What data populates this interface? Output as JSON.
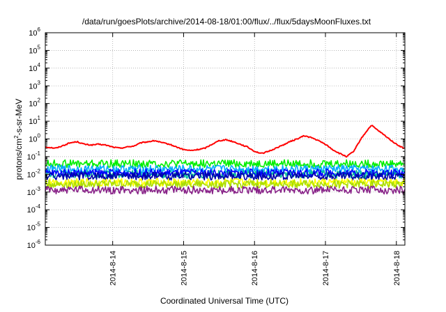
{
  "chart_data": {
    "type": "line",
    "title": "/data/run/goesPlots/archive/2014-08-18/01:00/flux/../flux/5daysMoonFluxes.txt",
    "xlabel": "Coordinated Universal Time (UTC)",
    "ylabel": "protons/cm²-s-sr-MeV",
    "ylabel_parts": {
      "pre": "protons/cm",
      "sup": "2",
      "post": "-s-sr-MeV"
    },
    "y_scale": "log",
    "ylim": [
      1e-06,
      1000000.0
    ],
    "y_ticks": [
      {
        "base": "10",
        "exp": "-6"
      },
      {
        "base": "10",
        "exp": "-5"
      },
      {
        "base": "10",
        "exp": "-4"
      },
      {
        "base": "10",
        "exp": "-3"
      },
      {
        "base": "10",
        "exp": "-2"
      },
      {
        "base": "10",
        "exp": "-1"
      },
      {
        "base": "10",
        "exp": "0"
      },
      {
        "base": "10",
        "exp": "1"
      },
      {
        "base": "10",
        "exp": "2"
      },
      {
        "base": "10",
        "exp": "3"
      },
      {
        "base": "10",
        "exp": "4"
      },
      {
        "base": "10",
        "exp": "5"
      },
      {
        "base": "10",
        "exp": "6"
      }
    ],
    "x_ticks": [
      "2014-8-14",
      "2014-8-15",
      "2014-8-16",
      "2014-8-17",
      "2014-8-18"
    ],
    "xlim_days": [
      13.05,
      18.12
    ],
    "grid": true,
    "legend": "none",
    "series": [
      {
        "color": "#ff0000",
        "x_days": [
          13.05,
          13.2,
          13.4,
          13.5,
          13.6,
          13.7,
          13.8,
          13.9,
          14.0,
          14.1,
          14.2,
          14.3,
          14.4,
          14.5,
          14.6,
          14.7,
          14.8,
          14.9,
          15.0,
          15.1,
          15.2,
          15.3,
          15.4,
          15.5,
          15.6,
          15.7,
          15.8,
          15.9,
          16.0,
          16.1,
          16.2,
          16.3,
          16.4,
          16.5,
          16.6,
          16.7,
          16.8,
          16.9,
          17.0,
          17.1,
          17.2,
          17.3,
          17.4,
          17.5,
          17.6,
          17.65,
          17.7,
          17.8,
          17.9,
          18.0,
          18.1
        ],
        "values": [
          0.35,
          0.3,
          0.6,
          0.7,
          0.5,
          0.45,
          0.5,
          0.45,
          0.35,
          0.3,
          0.35,
          0.4,
          0.6,
          0.7,
          0.8,
          0.6,
          0.5,
          0.35,
          0.25,
          0.22,
          0.25,
          0.3,
          0.5,
          0.8,
          0.9,
          0.7,
          0.5,
          0.35,
          0.2,
          0.15,
          0.2,
          0.3,
          0.45,
          0.7,
          1.0,
          1.5,
          1.2,
          0.8,
          0.5,
          0.25,
          0.15,
          0.1,
          0.2,
          1.0,
          3.5,
          6.0,
          4.0,
          2.0,
          1.0,
          0.5,
          0.3
        ]
      },
      {
        "color": "#00ee00",
        "x_days": [
          13.05,
          18.12
        ],
        "values": [
          0.04,
          0.04
        ]
      },
      {
        "color": "#00aaff",
        "x_days": [
          13.05,
          18.12
        ],
        "values": [
          0.02,
          0.02
        ]
      },
      {
        "color": "#00bb99",
        "x_days": [
          13.05,
          18.12
        ],
        "values": [
          0.01,
          0.01
        ]
      },
      {
        "color": "#0000ff",
        "x_days": [
          13.05,
          18.12
        ],
        "values": [
          0.012,
          0.012
        ]
      },
      {
        "color": "#0000aa",
        "x_days": [
          13.05,
          18.12
        ],
        "values": [
          0.008,
          0.008
        ]
      },
      {
        "color": "#ffff00",
        "x_days": [
          13.05,
          18.12
        ],
        "values": [
          0.0035,
          0.0035
        ]
      },
      {
        "color": "#aadd00",
        "x_days": [
          13.05,
          18.12
        ],
        "values": [
          0.0028,
          0.0028
        ]
      },
      {
        "color": "#882288",
        "x_days": [
          13.05,
          18.12
        ],
        "values": [
          0.0013,
          0.0013
        ]
      }
    ]
  }
}
